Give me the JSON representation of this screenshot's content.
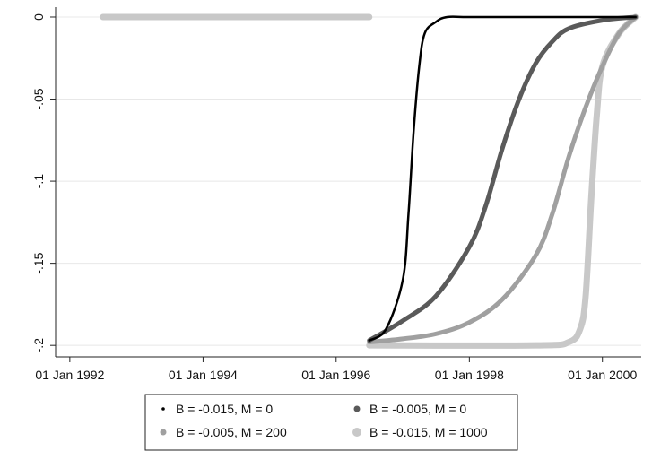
{
  "chart_data": {
    "type": "line",
    "title": "",
    "xlabel": "",
    "ylabel": "",
    "x_ticks": [
      "01 Jan 1992",
      "01 Jan 1994",
      "01 Jan 1996",
      "01 Jan 1998",
      "01 Jan 2000"
    ],
    "y_ticks": [
      "0",
      "-.05",
      "-.1",
      "-.15",
      "-.2"
    ],
    "xlim": [
      "1991-10-15",
      "2000-08-01"
    ],
    "ylim": [
      -0.207,
      0.006
    ],
    "grid": "horizontal",
    "legend_position": "bottom",
    "series": [
      {
        "name": "B = -0.015, M = 0",
        "color": "#000000",
        "x": [
          "1996-07-01",
          "1996-10-01",
          "1997-01-01",
          "1997-02-01",
          "1997-03-01",
          "1997-04-01",
          "1997-05-01",
          "1997-07-01",
          "1997-09-01",
          "1998-01-01",
          "1999-01-01",
          "2000-01-01",
          "2000-07-01"
        ],
        "y": [
          -0.197,
          -0.19,
          -0.16,
          -0.12,
          -0.07,
          -0.03,
          -0.01,
          -0.003,
          0,
          0,
          0,
          0,
          0
        ]
      },
      {
        "name": "B = -0.005, M = 0",
        "color": "#5a5a5a",
        "x": [
          "1996-07-01",
          "1997-01-01",
          "1997-07-01",
          "1998-01-01",
          "1998-04-01",
          "1998-07-01",
          "1998-10-01",
          "1999-01-01",
          "1999-04-01",
          "1999-07-01",
          "2000-01-01",
          "2000-07-01"
        ],
        "y": [
          -0.197,
          -0.185,
          -0.17,
          -0.14,
          -0.115,
          -0.08,
          -0.05,
          -0.028,
          -0.015,
          -0.007,
          -0.002,
          0
        ]
      },
      {
        "name": "B = -0.005, M = 200",
        "color": "#a0a0a0",
        "x": [
          "1996-07-01",
          "1997-01-01",
          "1997-07-01",
          "1998-01-01",
          "1998-07-01",
          "1999-01-01",
          "1999-04-01",
          "1999-07-01",
          "1999-10-01",
          "2000-01-01",
          "2000-04-01",
          "2000-07-01"
        ],
        "y": [
          -0.198,
          -0.196,
          -0.193,
          -0.186,
          -0.172,
          -0.145,
          -0.12,
          -0.085,
          -0.055,
          -0.03,
          -0.01,
          0
        ]
      },
      {
        "name": "B = -0.015, M = 1000",
        "color": "#c8c8c8",
        "x": [
          "1992-07-01",
          "1996-07-01",
          "1996-07-01",
          "1999-01-01",
          "1999-07-01",
          "1999-09-01",
          "1999-10-01",
          "1999-11-01",
          "1999-12-01",
          "2000-01-01",
          "2000-04-01",
          "2000-07-01"
        ],
        "y": [
          0,
          0,
          -0.2,
          -0.2,
          -0.198,
          -0.19,
          -0.17,
          -0.11,
          -0.06,
          -0.03,
          -0.01,
          0
        ]
      }
    ]
  }
}
